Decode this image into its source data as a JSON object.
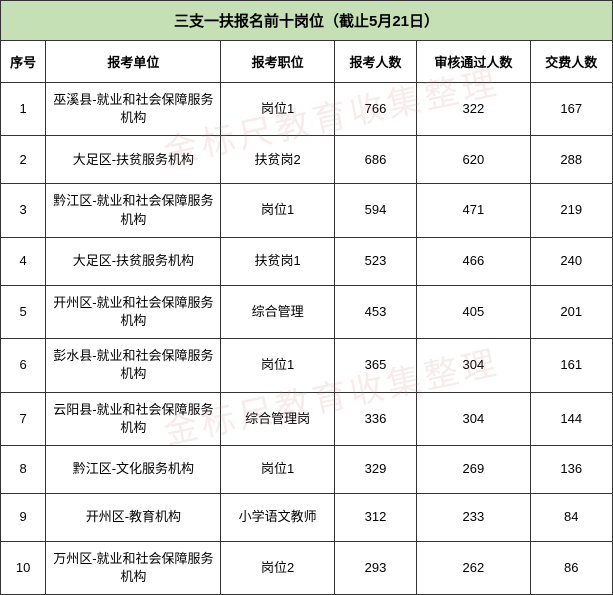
{
  "table": {
    "title": "三支一扶报名前十岗位（截止5月21日）",
    "title_bg": "#c5e0b4",
    "border_color": "#333333",
    "columns": [
      {
        "key": "seq",
        "label": "序号",
        "width": 44
      },
      {
        "key": "unit",
        "label": "报考单位",
        "width": 170
      },
      {
        "key": "position",
        "label": "报考职位",
        "width": 110
      },
      {
        "key": "applicants",
        "label": "报考人数",
        "width": 80
      },
      {
        "key": "passed",
        "label": "审核通过人数",
        "width": 110
      },
      {
        "key": "paid",
        "label": "交费人数",
        "width": 80
      }
    ],
    "rows": [
      {
        "seq": "1",
        "unit": "巫溪县-就业和社会保障服务机构",
        "position": "岗位1",
        "applicants": "766",
        "passed": "322",
        "paid": "167"
      },
      {
        "seq": "2",
        "unit": "大足区-扶贫服务机构",
        "position": "扶贫岗2",
        "applicants": "686",
        "passed": "620",
        "paid": "288"
      },
      {
        "seq": "3",
        "unit": "黔江区-就业和社会保障服务机构",
        "position": "岗位1",
        "applicants": "594",
        "passed": "471",
        "paid": "219"
      },
      {
        "seq": "4",
        "unit": "大足区-扶贫服务机构",
        "position": "扶贫岗1",
        "applicants": "523",
        "passed": "466",
        "paid": "240"
      },
      {
        "seq": "5",
        "unit": "开州区-就业和社会保障服务机构",
        "position": "综合管理",
        "applicants": "453",
        "passed": "405",
        "paid": "201"
      },
      {
        "seq": "6",
        "unit": "彭水县-就业和社会保障服务机构",
        "position": "岗位1",
        "applicants": "365",
        "passed": "304",
        "paid": "161"
      },
      {
        "seq": "7",
        "unit": "云阳县-就业和社会保障服务机构",
        "position": "综合管理岗",
        "applicants": "336",
        "passed": "304",
        "paid": "144"
      },
      {
        "seq": "8",
        "unit": "黔江区-文化服务机构",
        "position": "岗位1",
        "applicants": "329",
        "passed": "269",
        "paid": "136"
      },
      {
        "seq": "9",
        "unit": "开州区-教育机构",
        "position": "小学语文教师",
        "applicants": "312",
        "passed": "233",
        "paid": "84"
      },
      {
        "seq": "10",
        "unit": "万州区-就业和社会保障服务机构",
        "position": "岗位2",
        "applicants": "293",
        "passed": "262",
        "paid": "86"
      }
    ]
  },
  "watermark": {
    "text": "金标尺教育收集整理",
    "color": "rgba(200,120,120,0.15)",
    "fontsize": 34,
    "rotation_deg": -12
  }
}
